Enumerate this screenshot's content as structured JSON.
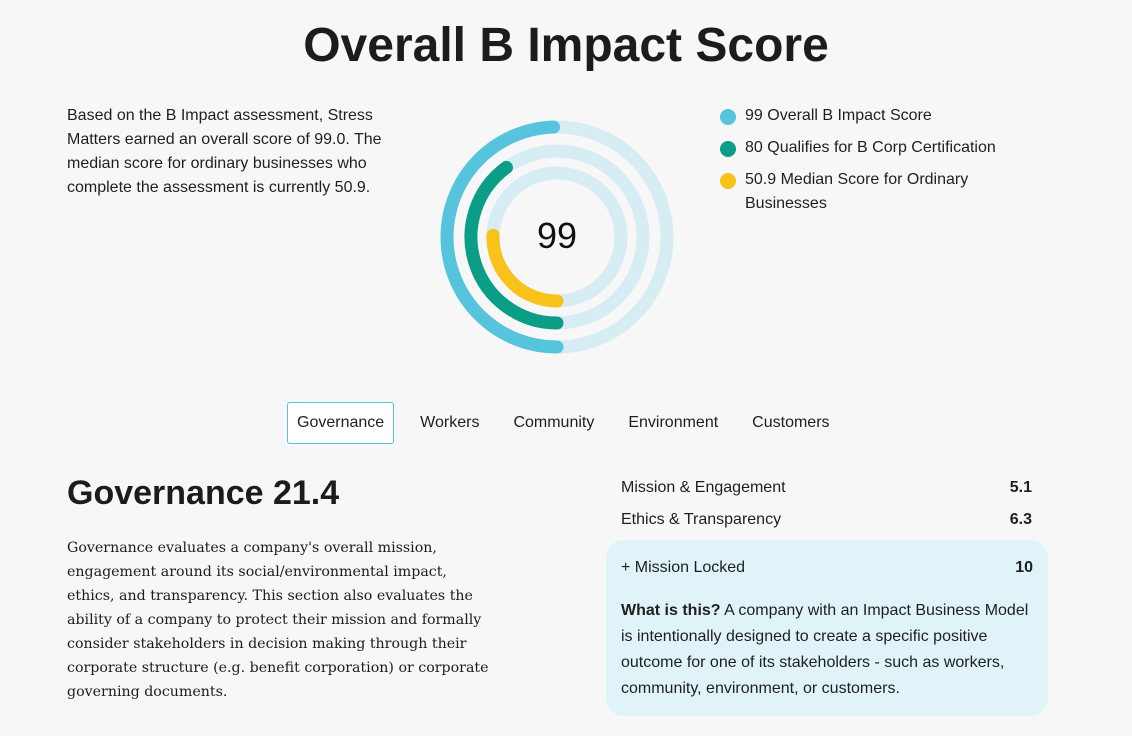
{
  "page": {
    "title": "Overall B Impact Score"
  },
  "intro": {
    "text": "Based on the B Impact assessment, Stress Matters earned an overall score of 99.0. The median score for ordinary businesses who complete the assessment is currently 50.9."
  },
  "score_ring": {
    "center_label": "99",
    "max": 200,
    "track_color": "#d6edf4",
    "rings": [
      {
        "value": 99,
        "color": "#56c4dd"
      },
      {
        "value": 80,
        "color": "#0b9e86"
      },
      {
        "value": 50.9,
        "color": "#f9c21a"
      }
    ]
  },
  "legend": [
    {
      "label": "99 Overall B Impact Score",
      "color": "#56c4dd"
    },
    {
      "label": "80 Qualifies for B Corp Certification",
      "color": "#0b9e86"
    },
    {
      "label": "50.9 Median Score for Ordinary Businesses",
      "color": "#f9c21a"
    }
  ],
  "tabs": [
    {
      "label": "Governance",
      "active": true
    },
    {
      "label": "Workers"
    },
    {
      "label": "Community"
    },
    {
      "label": "Environment"
    },
    {
      "label": "Customers"
    }
  ],
  "section": {
    "title": "Governance 21.4",
    "description": "Governance evaluates a company's overall mission, engagement around its social/environmental impact, ethics, and transparency. This section also evaluates the ability of a company to protect their mission and formally consider stakeholders in decision making through their corporate structure (e.g. benefit corporation) or corporate governing documents."
  },
  "metrics": [
    {
      "label": "Mission & Engagement",
      "value": "5.1"
    },
    {
      "label": "Ethics & Transparency",
      "value": "6.3"
    }
  ],
  "callout": {
    "label": "+ Mission Locked",
    "value": "10",
    "question": "What is this?",
    "answer": " A company with an Impact Business Model is intentionally designed to create a specific positive outcome for one of its stakeholders - such as workers, community, environment, or customers."
  }
}
